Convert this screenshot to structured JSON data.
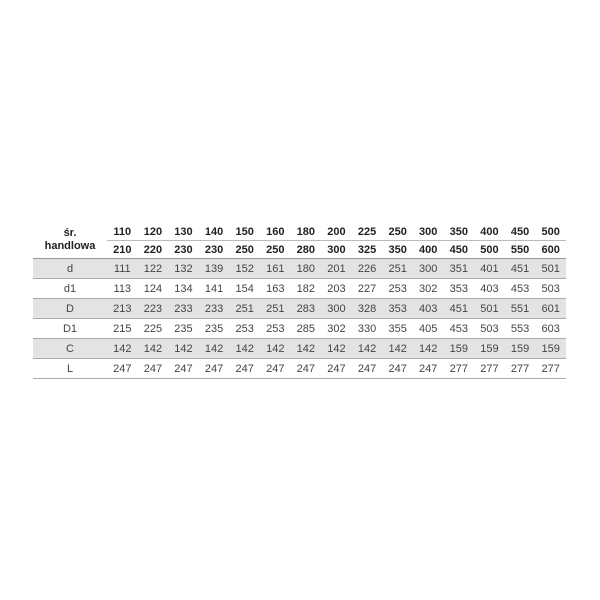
{
  "header": {
    "label_line1": "śr.",
    "label_line2": "handlowa",
    "row1": [
      "110",
      "120",
      "130",
      "140",
      "150",
      "160",
      "180",
      "200",
      "225",
      "250",
      "300",
      "350",
      "400",
      "450",
      "500"
    ],
    "row2": [
      "210",
      "220",
      "230",
      "230",
      "250",
      "250",
      "280",
      "300",
      "325",
      "350",
      "400",
      "450",
      "500",
      "550",
      "600"
    ]
  },
  "rows": [
    {
      "label": "d",
      "shaded": true,
      "values": [
        "111",
        "122",
        "132",
        "139",
        "152",
        "161",
        "180",
        "201",
        "226",
        "251",
        "300",
        "351",
        "401",
        "451",
        "501"
      ]
    },
    {
      "label": "d1",
      "shaded": false,
      "values": [
        "113",
        "124",
        "134",
        "141",
        "154",
        "163",
        "182",
        "203",
        "227",
        "253",
        "302",
        "353",
        "403",
        "453",
        "503"
      ]
    },
    {
      "label": "D",
      "shaded": true,
      "values": [
        "213",
        "223",
        "233",
        "233",
        "251",
        "251",
        "283",
        "300",
        "328",
        "353",
        "403",
        "451",
        "501",
        "551",
        "601"
      ]
    },
    {
      "label": "D1",
      "shaded": false,
      "values": [
        "215",
        "225",
        "235",
        "235",
        "253",
        "253",
        "285",
        "302",
        "330",
        "355",
        "405",
        "453",
        "503",
        "553",
        "603"
      ]
    },
    {
      "label": "C",
      "shaded": true,
      "values": [
        "142",
        "142",
        "142",
        "142",
        "142",
        "142",
        "142",
        "142",
        "142",
        "142",
        "142",
        "159",
        "159",
        "159",
        "159"
      ]
    },
    {
      "label": "L",
      "shaded": false,
      "values": [
        "247",
        "247",
        "247",
        "247",
        "247",
        "247",
        "247",
        "247",
        "247",
        "247",
        "247",
        "277",
        "277",
        "277",
        "277"
      ]
    }
  ],
  "colors": {
    "shade": "#e3e3e3"
  }
}
